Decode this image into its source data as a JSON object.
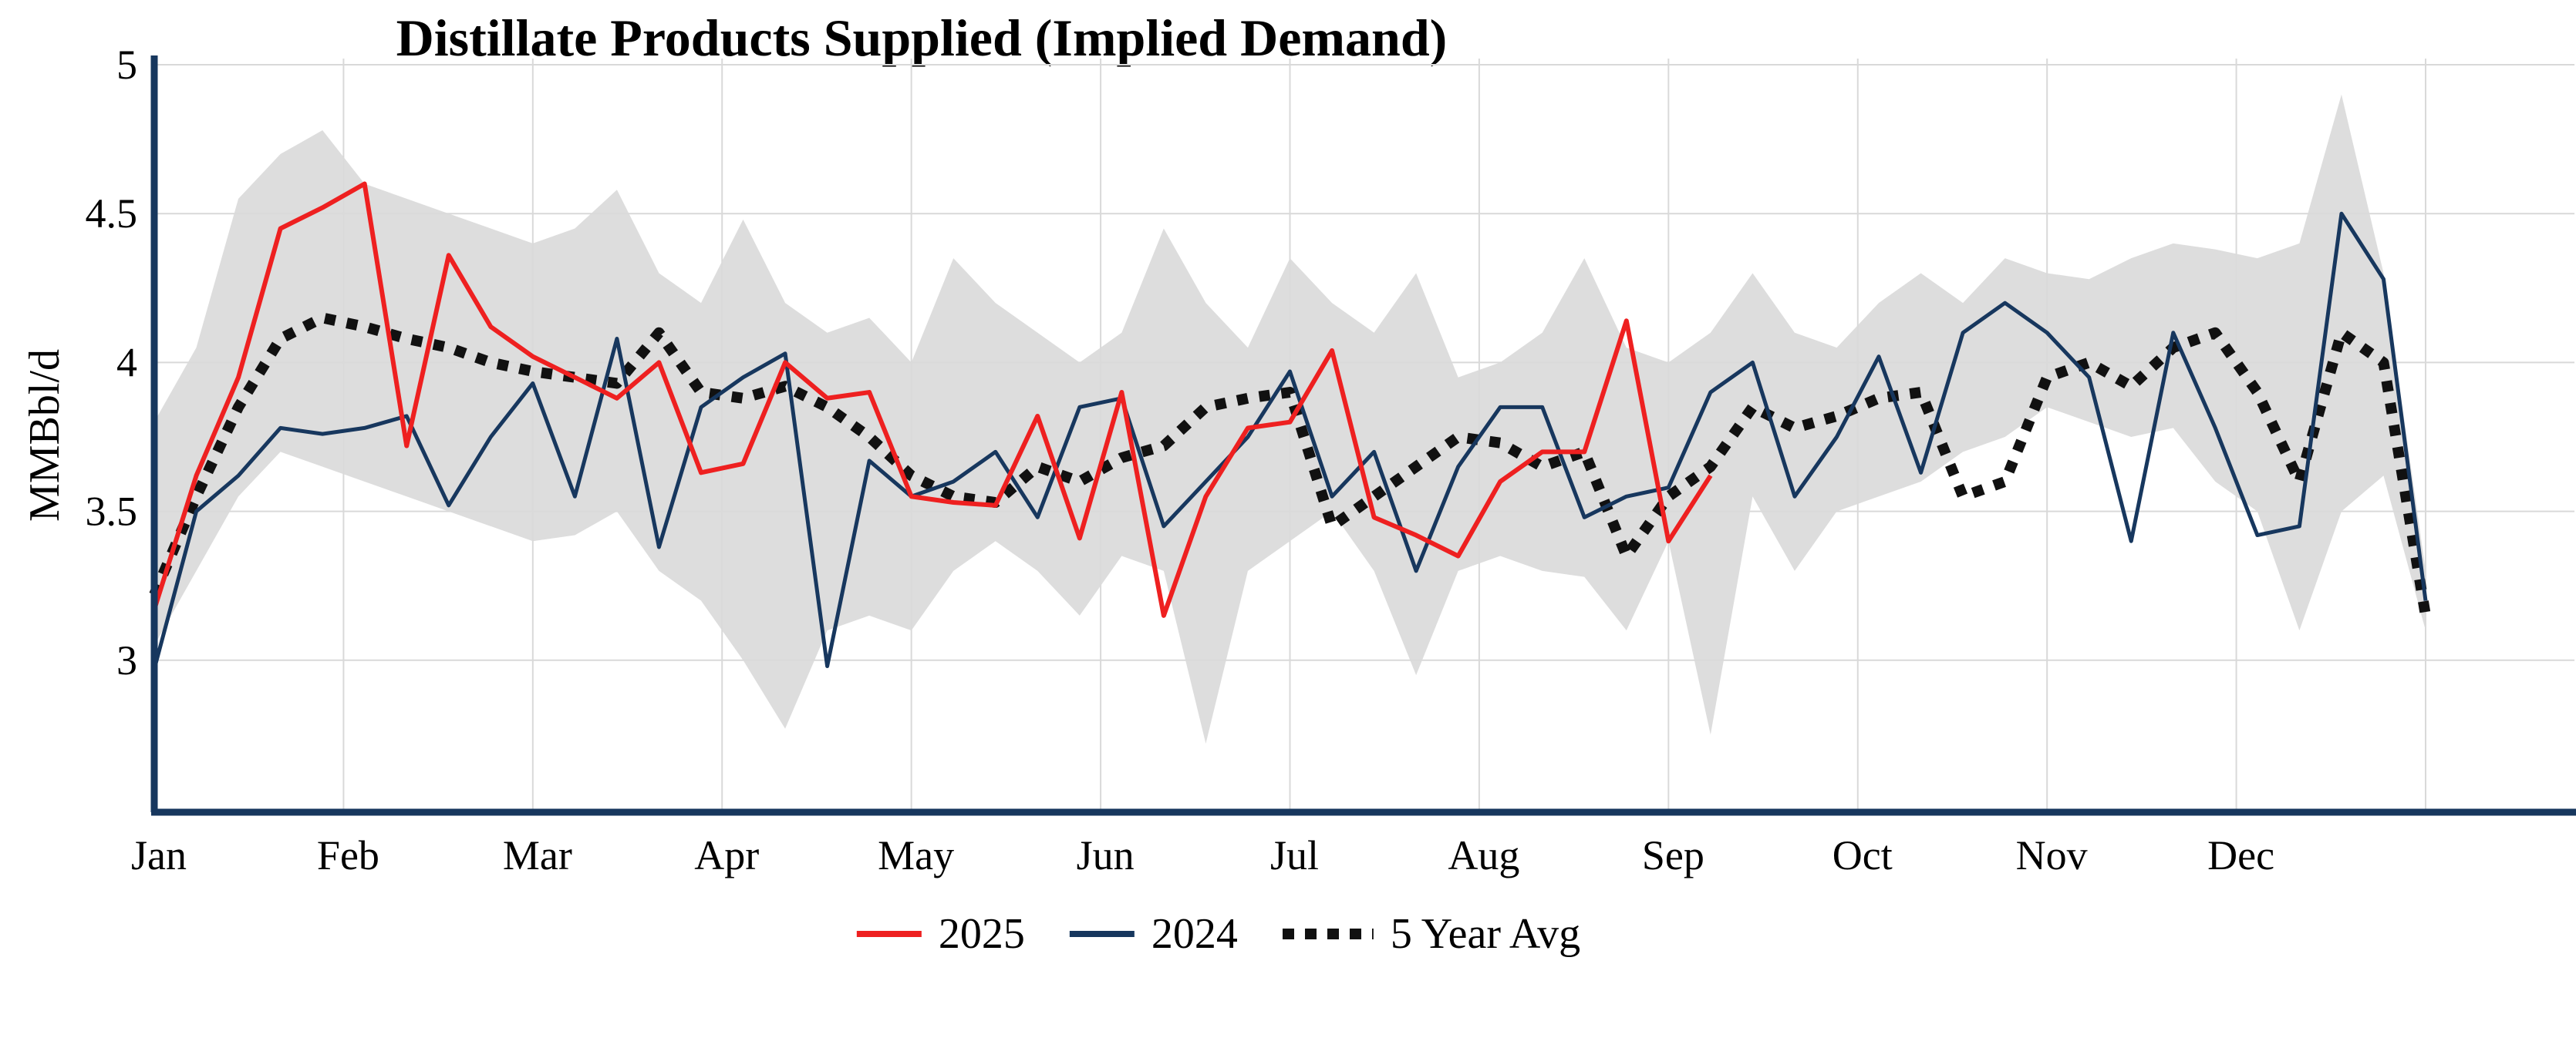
{
  "title": "Distillate Products Supplied (Implied Demand)",
  "y_axis": {
    "label": "MMBbl/d",
    "ticks": [
      {
        "label": "5",
        "value": 5.0
      },
      {
        "label": "4.5",
        "value": 4.5
      },
      {
        "label": "4",
        "value": 4.0
      },
      {
        "label": "3.5",
        "value": 3.5
      },
      {
        "label": "3",
        "value": 3.0
      }
    ],
    "min": 2.5,
    "max": 5.0
  },
  "x_axis": {
    "months": [
      "Jan",
      "Feb",
      "Mar",
      "Apr",
      "May",
      "Jun",
      "Jul",
      "Aug",
      "Sep",
      "Oct",
      "Nov",
      "Dec"
    ]
  },
  "legend": [
    {
      "label": "2025",
      "color": "#ee2020",
      "style": "solid"
    },
    {
      "label": "2024",
      "color": "#17375e",
      "style": "solid"
    },
    {
      "label": "5 Year Avg",
      "color": "#111111",
      "style": "dotted"
    }
  ],
  "colors": {
    "series_2025": "#ee2020",
    "series_2024": "#17375e",
    "series_avg": "#111111",
    "range_band": "#d9d9d9",
    "axis": "#17375e",
    "gridline": "#d9d9d9",
    "background": "#ffffff"
  },
  "chart_data": {
    "type": "line",
    "title": "Distillate Products Supplied (Implied Demand)",
    "xlabel": "",
    "ylabel": "MMBbl/d",
    "ylim": [
      2.5,
      5.0
    ],
    "x_unit": "weekly points, Jan through Dec",
    "xticklabels": [
      "Jan",
      "Feb",
      "Mar",
      "Apr",
      "May",
      "Jun",
      "Jul",
      "Aug",
      "Sep",
      "Oct",
      "Nov",
      "Dec"
    ],
    "yticks": [
      3.0,
      3.5,
      4.0,
      4.5,
      5.0
    ],
    "grid": true,
    "legend_position": "bottom-center",
    "series": [
      {
        "name": "2025",
        "color": "#ee2020",
        "style": "solid",
        "values": [
          3.17,
          3.62,
          3.95,
          4.45,
          4.52,
          4.6,
          3.72,
          4.36,
          4.12,
          4.02,
          3.95,
          3.88,
          4.0,
          3.63,
          3.66,
          4.0,
          3.88,
          3.9,
          3.55,
          3.53,
          3.52,
          3.82,
          3.41,
          3.9,
          3.15,
          3.55,
          3.78,
          3.8,
          4.04,
          3.48,
          3.42,
          3.35,
          3.6,
          3.7,
          3.7,
          4.14,
          3.4,
          3.62
        ]
      },
      {
        "name": "2024",
        "color": "#17375e",
        "style": "solid",
        "values": [
          2.97,
          3.5,
          3.62,
          3.78,
          3.76,
          3.78,
          3.82,
          3.52,
          3.75,
          3.93,
          3.55,
          4.08,
          3.38,
          3.85,
          3.95,
          4.03,
          2.98,
          3.67,
          3.55,
          3.6,
          3.7,
          3.48,
          3.85,
          3.88,
          3.45,
          3.6,
          3.75,
          3.97,
          3.55,
          3.7,
          3.3,
          3.65,
          3.85,
          3.85,
          3.48,
          3.55,
          3.58,
          3.9,
          4.0,
          3.55,
          3.75,
          4.02,
          3.63,
          4.1,
          4.2,
          4.1,
          3.95,
          3.4,
          4.1,
          3.78,
          3.42,
          3.45,
          4.5,
          4.28,
          3.2
        ]
      },
      {
        "name": "5 Year Avg",
        "color": "#111111",
        "style": "dotted",
        "values": [
          3.22,
          3.55,
          3.85,
          4.08,
          4.15,
          4.12,
          4.08,
          4.05,
          4.0,
          3.97,
          3.95,
          3.93,
          4.1,
          3.9,
          3.88,
          3.92,
          3.85,
          3.75,
          3.62,
          3.55,
          3.53,
          3.65,
          3.6,
          3.68,
          3.72,
          3.85,
          3.88,
          3.9,
          3.45,
          3.55,
          3.65,
          3.75,
          3.73,
          3.65,
          3.7,
          3.35,
          3.55,
          3.65,
          3.85,
          3.78,
          3.82,
          3.88,
          3.9,
          3.55,
          3.6,
          3.95,
          4.0,
          3.92,
          4.05,
          4.1,
          3.9,
          3.6,
          4.1,
          4.0,
          3.15
        ]
      }
    ],
    "range_band": {
      "name": "5 Year Range (shaded)",
      "color": "#d9d9d9",
      "max": [
        3.8,
        4.05,
        4.55,
        4.7,
        4.78,
        4.6,
        4.55,
        4.5,
        4.45,
        4.4,
        4.45,
        4.58,
        4.3,
        4.2,
        4.48,
        4.2,
        4.1,
        4.15,
        4.0,
        4.35,
        4.2,
        4.1,
        4.0,
        4.1,
        4.45,
        4.2,
        4.05,
        4.35,
        4.2,
        4.1,
        4.3,
        3.95,
        4.0,
        4.1,
        4.35,
        4.05,
        4.0,
        4.1,
        4.3,
        4.1,
        4.05,
        4.2,
        4.3,
        4.2,
        4.35,
        4.3,
        4.28,
        4.35,
        4.4,
        4.38,
        4.35,
        4.4,
        4.9,
        4.3,
        3.3
      ],
      "min": [
        3.05,
        3.3,
        3.55,
        3.7,
        3.65,
        3.6,
        3.55,
        3.5,
        3.45,
        3.4,
        3.42,
        3.5,
        3.3,
        3.2,
        3.0,
        2.77,
        3.1,
        3.15,
        3.1,
        3.3,
        3.4,
        3.3,
        3.15,
        3.35,
        3.3,
        2.72,
        3.3,
        3.4,
        3.5,
        3.3,
        2.95,
        3.3,
        3.35,
        3.3,
        3.28,
        3.1,
        3.4,
        2.75,
        3.55,
        3.3,
        3.5,
        3.55,
        3.6,
        3.7,
        3.75,
        3.85,
        3.8,
        3.75,
        3.78,
        3.6,
        3.5,
        3.1,
        3.5,
        3.62,
        3.1
      ]
    }
  }
}
